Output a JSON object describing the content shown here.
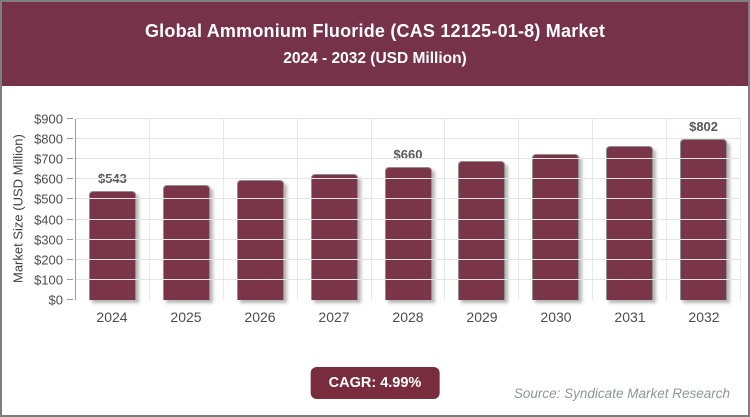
{
  "header": {
    "title_line1": "Global Ammonium Fluoride (CAS 12125-01-8) Market",
    "title_line2": "2024 - 2032 (USD Million)"
  },
  "chart_data": {
    "type": "bar",
    "title": "Global Ammonium Fluoride (CAS 12125-01-8) Market 2024 - 2032 (USD Million)",
    "categories": [
      "2024",
      "2025",
      "2026",
      "2027",
      "2028",
      "2029",
      "2030",
      "2031",
      "2032"
    ],
    "values": [
      543,
      570,
      598,
      628,
      660,
      693,
      727,
      764,
      802
    ],
    "bar_labels": [
      "$543",
      "",
      "",
      "",
      "$660",
      "",
      "",
      "",
      "$802"
    ],
    "xlabel": "",
    "ylabel": "Market Size (USD Million)",
    "ylim": [
      0,
      900
    ],
    "y_tick_step": 100,
    "y_tick_prefix": "$",
    "grid": true,
    "legend": false
  },
  "footer": {
    "cagr_label": "CAGR: 4.99%",
    "source": "Source: Syndicate Market Research"
  },
  "colors": {
    "banner": "#753248",
    "bar": "#7A3548",
    "badge": "#7A2C3F",
    "source_text": "#8e9697"
  }
}
